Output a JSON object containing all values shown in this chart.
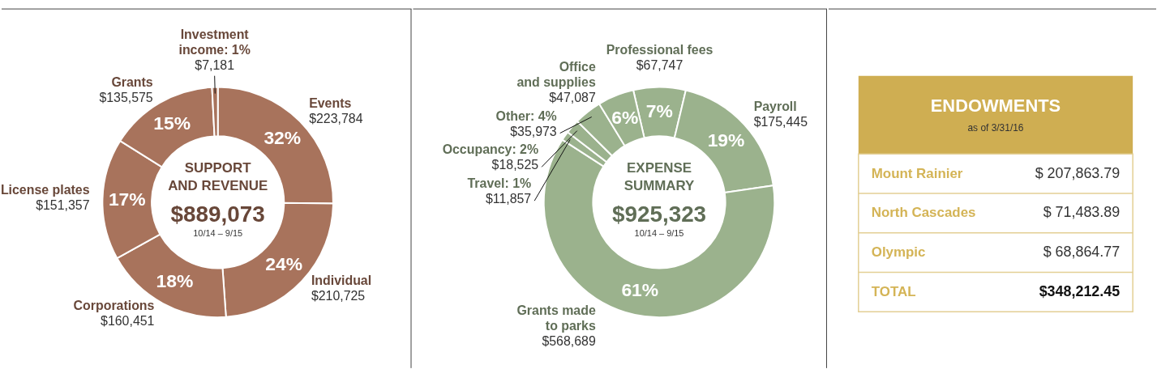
{
  "chart_data": [
    {
      "type": "donut",
      "title": "SUPPORT AND REVENUE",
      "subtitle": "$889,073",
      "categories": [
        "Events",
        "Individual",
        "Corporations",
        "License plates",
        "Grants",
        "Investment income: 1%"
      ],
      "values": [
        223784,
        210725,
        160451,
        151357,
        135575,
        7181
      ],
      "value_labels": [
        "$223,784",
        "$210,725",
        "$160,451",
        "$151,357",
        "$135,575",
        "$7,181"
      ],
      "colors": [
        "#a8735c",
        "#a8735c",
        "#a8735c",
        "#a8735c",
        "#a8735c",
        "#a8735c"
      ],
      "annotations": [
        "10/14 – 9/15",
        {
          "text": "32%",
          "x": "Events"
        },
        {
          "text": "24%",
          "x": "Individual"
        },
        {
          "text": "18%",
          "x": "Corporations"
        },
        {
          "text": "17%",
          "x": "License plates"
        },
        {
          "text": "15%",
          "x": "Grants"
        }
      ]
    },
    {
      "type": "donut",
      "title": "EXPENSE SUMMARY",
      "subtitle": "$925,323",
      "categories": [
        "Professional fees",
        "Payroll",
        "Grants made to parks",
        "Travel: 1%",
        "Occupancy: 2%",
        "Other: 4%",
        "Office and supplies"
      ],
      "values": [
        67747,
        175445,
        568689,
        11857,
        18525,
        35973,
        47087
      ],
      "value_labels": [
        "$67,747",
        "$175,445",
        "$568,689",
        "$11,857",
        "$18,525",
        "$35,973",
        "$47,087"
      ],
      "colors": [
        "#9bb28d",
        "#9bb28d",
        "#9bb28d",
        "#9bb28d",
        "#9bb28d",
        "#9bb28d",
        "#9bb28d"
      ],
      "annotations": [
        "10/14 – 9/15",
        {
          "text": "7%",
          "x": "Professional fees"
        },
        {
          "text": "19%",
          "x": "Payroll"
        },
        {
          "text": "61%",
          "x": "Grants made to parks"
        },
        {
          "text": "6%",
          "x": "Office and supplies"
        }
      ]
    },
    {
      "type": "other",
      "title": "ENDOWMENTS",
      "subtitle": "as of 3/31/16",
      "annotations": [
        "Mount Rainier",
        "$ 207,863.79",
        "North Cascades",
        "$ 71,483.89",
        "Olympic",
        "$ 68,864.77",
        "TOTAL",
        "$348,212.45"
      ]
    }
  ]
}
